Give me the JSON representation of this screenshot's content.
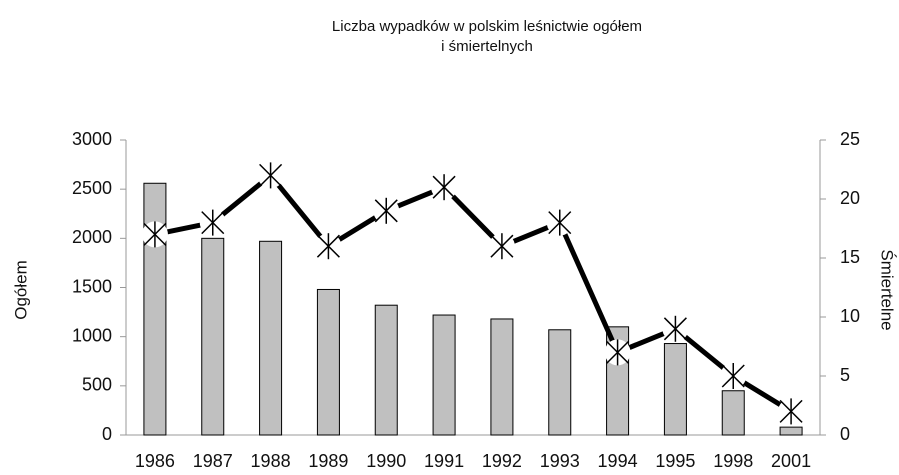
{
  "chart_data": {
    "type": "bar-line",
    "title": [
      "Liczba wypadków w polskim leśnictwie ogółem",
      "i śmiertelnych"
    ],
    "y_label": "Ogółem",
    "y2_label": "Śmiertelne",
    "categories": [
      "1986",
      "1987",
      "1988",
      "1989",
      "1990",
      "1991",
      "1992",
      "1993",
      "1994",
      "1995",
      "1998",
      "2001"
    ],
    "series": [
      {
        "name": "Ogółem",
        "type": "bar",
        "color": "#c0c0c0",
        "values": [
          2560,
          2000,
          1970,
          1480,
          1320,
          1220,
          1180,
          1070,
          1100,
          930,
          450,
          80
        ]
      },
      {
        "name": "Śmiertelne",
        "type": "line",
        "axis": "y2",
        "color": "#000000",
        "values": [
          17,
          18,
          22,
          16,
          19,
          21,
          16,
          18,
          7,
          9,
          5,
          2
        ]
      }
    ],
    "ylim": [
      0,
      3000
    ],
    "yticks": [
      0,
      500,
      1000,
      1500,
      2000,
      2500,
      3000
    ],
    "y2lim": [
      0,
      25
    ],
    "y2ticks": [
      0,
      5,
      10,
      15,
      20,
      25
    ]
  }
}
